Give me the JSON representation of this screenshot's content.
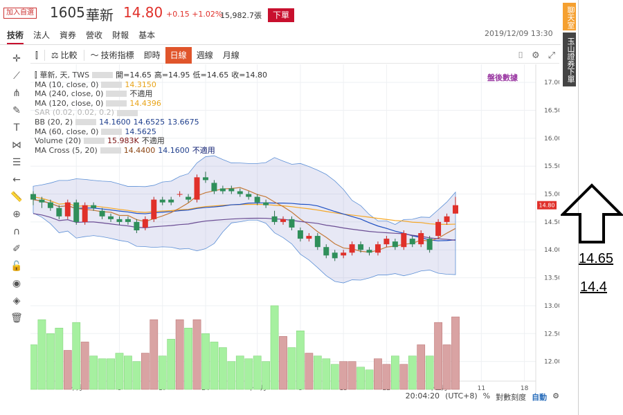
{
  "header": {
    "watch_label": "加入自選",
    "code": "1605",
    "name": "華新",
    "price": "14.80",
    "change": "+0.15 +1.02%",
    "volume": "15,982.7張",
    "order_button": "下單",
    "datetime": "2019/12/09 13:30"
  },
  "tabs": [
    "技術",
    "法人",
    "資券",
    "營收",
    "財報",
    "基本"
  ],
  "toolbar": {
    "compare": "比較",
    "indicators": "技術指標",
    "realtime": "即時",
    "daily": "日線",
    "weekly": "週線",
    "monthly": "月線"
  },
  "legend": {
    "ohlc_name": "華新, 天, TWS",
    "open": "開=14.65",
    "high": "高=14.95",
    "low": "低=14.65",
    "close": "收=14.80",
    "ma10": "MA (10, close, 0)",
    "ma10_val": "14.3150",
    "ma240": "MA (240, close, 0)",
    "ma240_val": "不適用",
    "ma120": "MA (120, close, 0)",
    "ma120_val": "14.4396",
    "sar": "SAR (0.02, 0.02, 0.2)",
    "bb": "BB (20, 2)",
    "bb_v1": "14.1600",
    "bb_v2": "14.6525",
    "bb_v3": "13.6675",
    "ma60": "MA (60, close, 0)",
    "ma60_val": "14.5625",
    "vol": "Volume (20)",
    "vol_v1": "15.983K",
    "vol_v2": "不適用",
    "macross": "MA Cross (5, 20)",
    "mac_v1": "14.4400",
    "mac_v2": "14.1600",
    "mac_v3": "不適用"
  },
  "after_hours": "盤後數據",
  "status": {
    "time": "20:04:20",
    "tz": "(UTC+8)",
    "pct": "%",
    "log": "對數刻度",
    "auto": "自動"
  },
  "side": {
    "chat": "聊天室",
    "broker": "玉山證券下單"
  },
  "notes": [
    "14.65",
    "14.4"
  ],
  "chart_data": {
    "type": "candlestick",
    "price_axis": [
      "17.00",
      "16.50",
      "16.00",
      "15.50",
      "15.00",
      "14.50",
      "14.00",
      "13.50",
      "13.00",
      "12.50",
      "12.00"
    ],
    "price_range": [
      11.5,
      17.2
    ],
    "last_price_label": "14.80",
    "x_ticks": [
      {
        "i": 5,
        "label": "十月"
      },
      {
        "i": 10,
        "label": "8"
      },
      {
        "i": 15,
        "label": "17"
      },
      {
        "i": 20,
        "label": "24"
      },
      {
        "i": 26,
        "label": "十一月"
      },
      {
        "i": 31,
        "label": "8"
      },
      {
        "i": 36,
        "label": "15"
      },
      {
        "i": 41,
        "label": "22"
      },
      {
        "i": 47,
        "label": "十二月"
      },
      {
        "i": 52,
        "label": "11"
      },
      {
        "i": 57,
        "label": "18"
      }
    ],
    "candles": [
      [
        15.0,
        14.9,
        15.05,
        14.8
      ],
      [
        14.9,
        14.85,
        14.95,
        14.75
      ],
      [
        14.85,
        14.75,
        14.9,
        14.7
      ],
      [
        14.75,
        14.6,
        14.8,
        14.55
      ],
      [
        14.6,
        14.85,
        14.9,
        14.55
      ],
      [
        14.85,
        14.5,
        14.9,
        14.45
      ],
      [
        14.5,
        14.8,
        14.85,
        14.45
      ],
      [
        14.8,
        14.75,
        14.85,
        14.7
      ],
      [
        14.7,
        14.6,
        14.75,
        14.55
      ],
      [
        14.6,
        14.55,
        14.65,
        14.5
      ],
      [
        14.55,
        14.5,
        14.6,
        14.45
      ],
      [
        14.55,
        14.5,
        14.6,
        14.45
      ],
      [
        14.5,
        14.35,
        14.55,
        14.3
      ],
      [
        14.4,
        14.55,
        14.6,
        14.35
      ],
      [
        14.55,
        14.9,
        14.95,
        14.5
      ],
      [
        14.9,
        14.85,
        14.95,
        14.8
      ],
      [
        14.9,
        14.85,
        14.95,
        14.8
      ],
      [
        15.0,
        15.0,
        15.05,
        14.95
      ],
      [
        14.95,
        14.9,
        15.0,
        14.85
      ],
      [
        14.9,
        15.3,
        15.35,
        14.85
      ],
      [
        15.3,
        15.25,
        15.4,
        15.2
      ],
      [
        15.2,
        15.05,
        15.25,
        15.0
      ],
      [
        15.1,
        15.05,
        15.15,
        15.0
      ],
      [
        15.1,
        15.05,
        15.15,
        15.0
      ],
      [
        15.05,
        15.0,
        15.1,
        14.95
      ],
      [
        15.0,
        14.95,
        15.05,
        14.9
      ],
      [
        14.95,
        14.85,
        15.0,
        14.8
      ],
      [
        14.85,
        14.8,
        14.9,
        14.75
      ],
      [
        14.6,
        14.5,
        14.7,
        14.45
      ],
      [
        14.5,
        14.55,
        14.6,
        14.45
      ],
      [
        14.55,
        14.4,
        14.6,
        14.35
      ],
      [
        14.35,
        14.2,
        14.4,
        14.15
      ],
      [
        14.2,
        14.25,
        14.3,
        14.15
      ],
      [
        14.25,
        14.05,
        14.3,
        14.0
      ],
      [
        14.05,
        13.9,
        14.1,
        13.85
      ],
      [
        13.95,
        13.85,
        14.0,
        13.8
      ],
      [
        13.9,
        13.95,
        14.0,
        13.85
      ],
      [
        13.95,
        14.1,
        14.15,
        13.9
      ],
      [
        14.1,
        14.0,
        14.15,
        13.95
      ],
      [
        14.0,
        13.95,
        14.05,
        13.9
      ],
      [
        13.95,
        14.1,
        14.15,
        13.9
      ],
      [
        14.1,
        14.2,
        14.25,
        14.05
      ],
      [
        14.15,
        14.05,
        14.2,
        14.0
      ],
      [
        14.05,
        14.3,
        14.35,
        14.0
      ],
      [
        14.2,
        14.1,
        14.25,
        14.05
      ],
      [
        14.1,
        14.3,
        14.35,
        14.05
      ],
      [
        14.2,
        14.0,
        14.25,
        13.95
      ],
      [
        14.25,
        14.5,
        14.55,
        14.2
      ],
      [
        14.5,
        14.6,
        14.65,
        14.45
      ],
      [
        14.65,
        14.8,
        14.95,
        14.65
      ]
    ],
    "volumes": [
      12.3,
      12.75,
      12.5,
      12.6,
      12.2,
      12.7,
      12.35,
      12.1,
      12.05,
      12.05,
      12.15,
      12.1,
      12.0,
      12.15,
      12.75,
      12.1,
      12.4,
      12.75,
      12.6,
      12.75,
      12.5,
      12.35,
      12.25,
      12.0,
      12.1,
      12.05,
      12.1,
      12.0,
      13.0,
      12.45,
      12.25,
      12.55,
      12.15,
      12.1,
      12.05,
      11.95,
      12.0,
      12.0,
      11.9,
      11.85,
      12.05,
      11.95,
      12.1,
      11.95,
      12.1,
      12.3,
      12.1,
      12.7,
      12.3,
      12.8
    ]
  }
}
